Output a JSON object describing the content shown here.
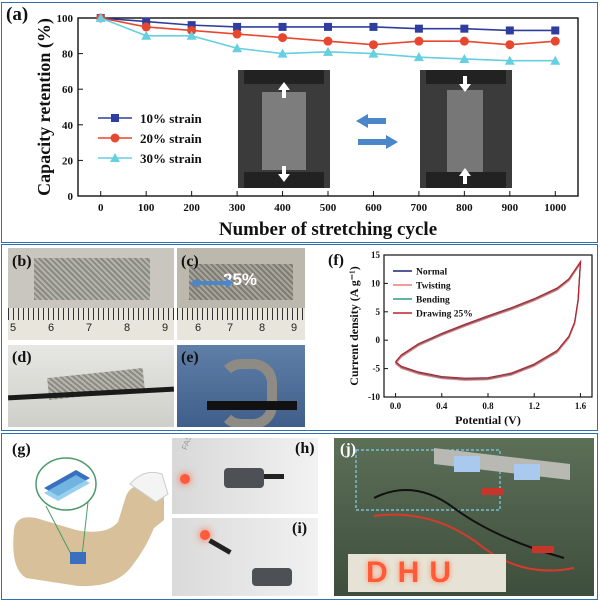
{
  "chart_data": [
    {
      "panel": "(a)",
      "type": "line",
      "xlabel": "Number of stretching cycle",
      "ylabel": "Capacity retention (%)",
      "x": [
        0,
        100,
        200,
        300,
        400,
        500,
        600,
        700,
        800,
        900,
        1000
      ],
      "xticks": [
        "0",
        "100",
        "200",
        "300",
        "400",
        "500",
        "600",
        "700",
        "800",
        "900",
        "1000"
      ],
      "yticks": [
        "0",
        "20",
        "40",
        "60",
        "80",
        "100"
      ],
      "xlim": [
        -50,
        1050
      ],
      "ylim": [
        0,
        100
      ],
      "legend_position": "left",
      "series": [
        {
          "name": "10% strain",
          "color": "#2f3e9e",
          "marker": "square",
          "values": [
            100,
            98,
            96,
            95,
            95,
            95,
            95,
            94,
            94,
            93,
            93
          ]
        },
        {
          "name": "20% strain",
          "color": "#e8472f",
          "marker": "circle",
          "values": [
            100,
            95,
            93,
            91,
            89,
            87,
            85,
            87,
            87,
            85,
            87
          ]
        },
        {
          "name": "30% strain",
          "color": "#66cfe0",
          "marker": "triangle",
          "values": [
            100,
            90,
            90,
            83,
            80,
            81,
            80,
            78,
            77,
            76,
            76
          ]
        }
      ]
    },
    {
      "panel": "(f)",
      "type": "line",
      "xlabel": "Potential (V)",
      "ylabel": "Current density (A g⁻¹)",
      "xticks": [
        "0.0",
        "0.4",
        "0.8",
        "1.2",
        "1.6"
      ],
      "yticks": [
        "-10",
        "-5",
        "0",
        "5",
        "10",
        "15"
      ],
      "xlim": [
        -0.1,
        1.7
      ],
      "ylim": [
        -10,
        15
      ],
      "legend_position": "top-left",
      "series": [
        {
          "name": "Normal",
          "color": "#1a2472"
        },
        {
          "name": "Twisting",
          "color": "#f07a7a"
        },
        {
          "name": "Bending",
          "color": "#2a9a8a"
        },
        {
          "name": "Drawing 25%",
          "color": "#c0202f"
        }
      ],
      "curve_upper": [
        [
          0.0,
          -4.0
        ],
        [
          0.05,
          -2.8
        ],
        [
          0.2,
          -0.8
        ],
        [
          0.4,
          1.0
        ],
        [
          0.6,
          2.6
        ],
        [
          0.8,
          4.1
        ],
        [
          1.0,
          5.5
        ],
        [
          1.2,
          7.1
        ],
        [
          1.4,
          9.0
        ],
        [
          1.5,
          10.6
        ],
        [
          1.58,
          13.0
        ],
        [
          1.6,
          13.6
        ]
      ],
      "curve_lower": [
        [
          1.6,
          13.6
        ],
        [
          1.58,
          7.0
        ],
        [
          1.55,
          3.0
        ],
        [
          1.5,
          0.5
        ],
        [
          1.4,
          -2.0
        ],
        [
          1.2,
          -4.4
        ],
        [
          1.0,
          -6.0
        ],
        [
          0.8,
          -6.8
        ],
        [
          0.6,
          -6.9
        ],
        [
          0.4,
          -6.6
        ],
        [
          0.2,
          -5.8
        ],
        [
          0.05,
          -4.8
        ],
        [
          0.0,
          -4.0
        ]
      ]
    }
  ],
  "labels": {
    "a": "(a)",
    "b": "(b)",
    "c": "(c)",
    "d": "(d)",
    "e": "(e)",
    "f": "(f)",
    "g": "(g)",
    "h": "(h)",
    "i": "(i)",
    "j": "(j)"
  },
  "photo_text": {
    "stretch_percent": "25%",
    "led_letters": "DHU",
    "ruler_b": [
      "5",
      "6",
      "7",
      "8",
      "9"
    ],
    "ruler_c": [
      "6",
      "7",
      "8",
      "9"
    ],
    "fashion_text": "FASHION"
  },
  "colors": {
    "frame": "#2f6fb4",
    "arrow_blue": "#4a86c8",
    "led_red": "#ff5a3a"
  }
}
